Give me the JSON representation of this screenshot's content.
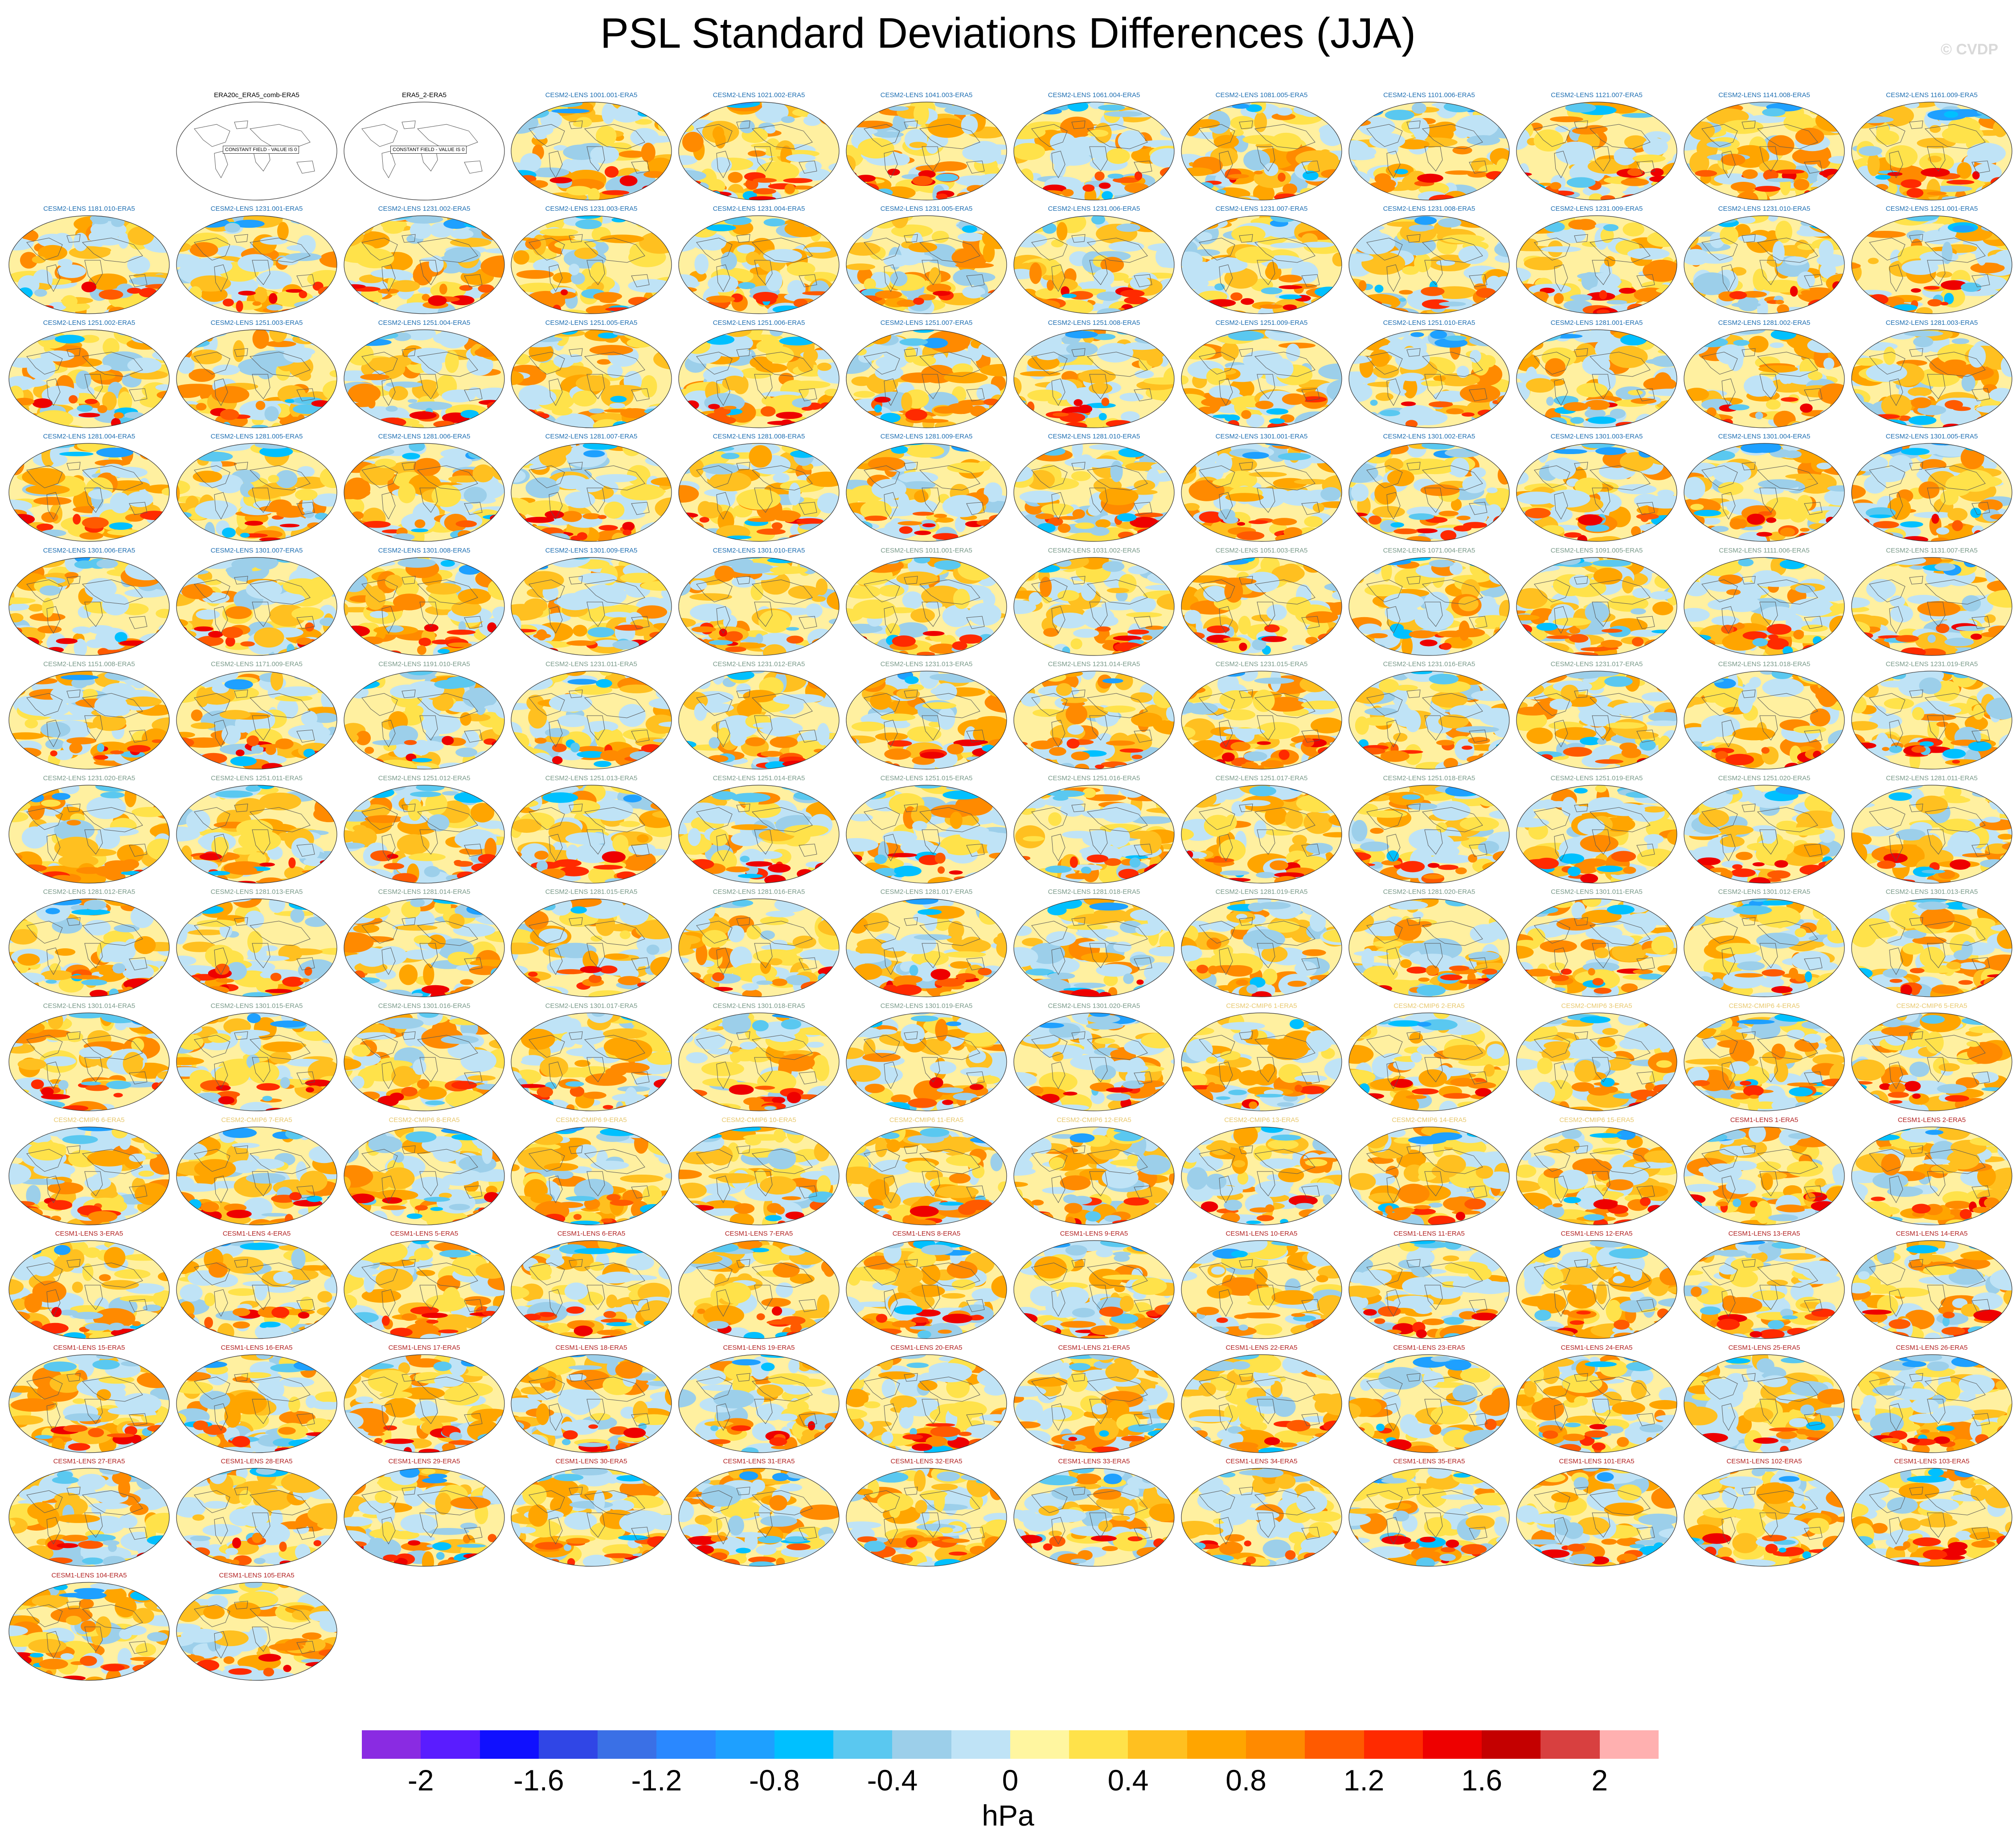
{
  "title": "PSL Standard Deviations Differences (JJA)",
  "credit": "© CVDP",
  "panels": [
    {
      "label": "ERA20c_ERA5_comb-ERA5",
      "group": "obs",
      "placeholder": "CONSTANT FIELD - VALUE IS 0"
    },
    {
      "label": "ERA5_2-ERA5",
      "group": "obs",
      "placeholder": "CONSTANT FIELD - VALUE IS 0"
    },
    {
      "label": "CESM2-LENS 1001.001-ERA5",
      "group": "cesm2_a"
    },
    {
      "label": "CESM2-LENS 1021.002-ERA5",
      "group": "cesm2_a"
    },
    {
      "label": "CESM2-LENS 1041.003-ERA5",
      "group": "cesm2_a"
    },
    {
      "label": "CESM2-LENS 1061.004-ERA5",
      "group": "cesm2_a"
    },
    {
      "label": "CESM2-LENS 1081.005-ERA5",
      "group": "cesm2_a"
    },
    {
      "label": "CESM2-LENS 1101.006-ERA5",
      "group": "cesm2_a"
    },
    {
      "label": "CESM2-LENS 1121.007-ERA5",
      "group": "cesm2_a"
    },
    {
      "label": "CESM2-LENS 1141.008-ERA5",
      "group": "cesm2_a"
    },
    {
      "label": "CESM2-LENS 1161.009-ERA5",
      "group": "cesm2_a"
    },
    {
      "label": "CESM2-LENS 1181.010-ERA5",
      "group": "cesm2_a"
    },
    {
      "label": "CESM2-LENS 1231.001-ERA5",
      "group": "cesm2_a"
    },
    {
      "label": "CESM2-LENS 1231.002-ERA5",
      "group": "cesm2_a"
    },
    {
      "label": "CESM2-LENS 1231.003-ERA5",
      "group": "cesm2_a"
    },
    {
      "label": "CESM2-LENS 1231.004-ERA5",
      "group": "cesm2_a"
    },
    {
      "label": "CESM2-LENS 1231.005-ERA5",
      "group": "cesm2_a"
    },
    {
      "label": "CESM2-LENS 1231.006-ERA5",
      "group": "cesm2_a"
    },
    {
      "label": "CESM2-LENS 1231.007-ERA5",
      "group": "cesm2_a"
    },
    {
      "label": "CESM2-LENS 1231.008-ERA5",
      "group": "cesm2_a"
    },
    {
      "label": "CESM2-LENS 1231.009-ERA5",
      "group": "cesm2_a"
    },
    {
      "label": "CESM2-LENS 1231.010-ERA5",
      "group": "cesm2_a"
    },
    {
      "label": "CESM2-LENS 1251.001-ERA5",
      "group": "cesm2_a"
    },
    {
      "label": "CESM2-LENS 1251.002-ERA5",
      "group": "cesm2_a"
    },
    {
      "label": "CESM2-LENS 1251.003-ERA5",
      "group": "cesm2_a"
    },
    {
      "label": "CESM2-LENS 1251.004-ERA5",
      "group": "cesm2_a"
    },
    {
      "label": "CESM2-LENS 1251.005-ERA5",
      "group": "cesm2_a"
    },
    {
      "label": "CESM2-LENS 1251.006-ERA5",
      "group": "cesm2_a"
    },
    {
      "label": "CESM2-LENS 1251.007-ERA5",
      "group": "cesm2_a"
    },
    {
      "label": "CESM2-LENS 1251.008-ERA5",
      "group": "cesm2_a"
    },
    {
      "label": "CESM2-LENS 1251.009-ERA5",
      "group": "cesm2_a"
    },
    {
      "label": "CESM2-LENS 1251.010-ERA5",
      "group": "cesm2_a"
    },
    {
      "label": "CESM2-LENS 1281.001-ERA5",
      "group": "cesm2_a"
    },
    {
      "label": "CESM2-LENS 1281.002-ERA5",
      "group": "cesm2_a"
    },
    {
      "label": "CESM2-LENS 1281.003-ERA5",
      "group": "cesm2_a"
    },
    {
      "label": "CESM2-LENS 1281.004-ERA5",
      "group": "cesm2_a"
    },
    {
      "label": "CESM2-LENS 1281.005-ERA5",
      "group": "cesm2_a"
    },
    {
      "label": "CESM2-LENS 1281.006-ERA5",
      "group": "cesm2_a"
    },
    {
      "label": "CESM2-LENS 1281.007-ERA5",
      "group": "cesm2_a"
    },
    {
      "label": "CESM2-LENS 1281.008-ERA5",
      "group": "cesm2_a"
    },
    {
      "label": "CESM2-LENS 1281.009-ERA5",
      "group": "cesm2_a"
    },
    {
      "label": "CESM2-LENS 1281.010-ERA5",
      "group": "cesm2_a"
    },
    {
      "label": "CESM2-LENS 1301.001-ERA5",
      "group": "cesm2_a"
    },
    {
      "label": "CESM2-LENS 1301.002-ERA5",
      "group": "cesm2_a"
    },
    {
      "label": "CESM2-LENS 1301.003-ERA5",
      "group": "cesm2_a"
    },
    {
      "label": "CESM2-LENS 1301.004-ERA5",
      "group": "cesm2_a"
    },
    {
      "label": "CESM2-LENS 1301.005-ERA5",
      "group": "cesm2_a"
    },
    {
      "label": "CESM2-LENS 1301.006-ERA5",
      "group": "cesm2_a"
    },
    {
      "label": "CESM2-LENS 1301.007-ERA5",
      "group": "cesm2_a"
    },
    {
      "label": "CESM2-LENS 1301.008-ERA5",
      "group": "cesm2_a"
    },
    {
      "label": "CESM2-LENS 1301.009-ERA5",
      "group": "cesm2_a"
    },
    {
      "label": "CESM2-LENS 1301.010-ERA5",
      "group": "cesm2_a"
    },
    {
      "label": "CESM2-LENS 1011.001-ERA5",
      "group": "cesm2_b"
    },
    {
      "label": "CESM2-LENS 1031.002-ERA5",
      "group": "cesm2_b"
    },
    {
      "label": "CESM2-LENS 1051.003-ERA5",
      "group": "cesm2_b"
    },
    {
      "label": "CESM2-LENS 1071.004-ERA5",
      "group": "cesm2_b"
    },
    {
      "label": "CESM2-LENS 1091.005-ERA5",
      "group": "cesm2_b"
    },
    {
      "label": "CESM2-LENS 1111.006-ERA5",
      "group": "cesm2_b"
    },
    {
      "label": "CESM2-LENS 1131.007-ERA5",
      "group": "cesm2_b"
    },
    {
      "label": "CESM2-LENS 1151.008-ERA5",
      "group": "cesm2_b"
    },
    {
      "label": "CESM2-LENS 1171.009-ERA5",
      "group": "cesm2_b"
    },
    {
      "label": "CESM2-LENS 1191.010-ERA5",
      "group": "cesm2_b"
    },
    {
      "label": "CESM2-LENS 1231.011-ERA5",
      "group": "cesm2_b"
    },
    {
      "label": "CESM2-LENS 1231.012-ERA5",
      "group": "cesm2_b"
    },
    {
      "label": "CESM2-LENS 1231.013-ERA5",
      "group": "cesm2_b"
    },
    {
      "label": "CESM2-LENS 1231.014-ERA5",
      "group": "cesm2_b"
    },
    {
      "label": "CESM2-LENS 1231.015-ERA5",
      "group": "cesm2_b"
    },
    {
      "label": "CESM2-LENS 1231.016-ERA5",
      "group": "cesm2_b"
    },
    {
      "label": "CESM2-LENS 1231.017-ERA5",
      "group": "cesm2_b"
    },
    {
      "label": "CESM2-LENS 1231.018-ERA5",
      "group": "cesm2_b"
    },
    {
      "label": "CESM2-LENS 1231.019-ERA5",
      "group": "cesm2_b"
    },
    {
      "label": "CESM2-LENS 1231.020-ERA5",
      "group": "cesm2_b"
    },
    {
      "label": "CESM2-LENS 1251.011-ERA5",
      "group": "cesm2_b"
    },
    {
      "label": "CESM2-LENS 1251.012-ERA5",
      "group": "cesm2_b"
    },
    {
      "label": "CESM2-LENS 1251.013-ERA5",
      "group": "cesm2_b"
    },
    {
      "label": "CESM2-LENS 1251.014-ERA5",
      "group": "cesm2_b"
    },
    {
      "label": "CESM2-LENS 1251.015-ERA5",
      "group": "cesm2_b"
    },
    {
      "label": "CESM2-LENS 1251.016-ERA5",
      "group": "cesm2_b"
    },
    {
      "label": "CESM2-LENS 1251.017-ERA5",
      "group": "cesm2_b"
    },
    {
      "label": "CESM2-LENS 1251.018-ERA5",
      "group": "cesm2_b"
    },
    {
      "label": "CESM2-LENS 1251.019-ERA5",
      "group": "cesm2_b"
    },
    {
      "label": "CESM2-LENS 1251.020-ERA5",
      "group": "cesm2_b"
    },
    {
      "label": "CESM2-LENS 1281.011-ERA5",
      "group": "cesm2_b"
    },
    {
      "label": "CESM2-LENS 1281.012-ERA5",
      "group": "cesm2_b"
    },
    {
      "label": "CESM2-LENS 1281.013-ERA5",
      "group": "cesm2_b"
    },
    {
      "label": "CESM2-LENS 1281.014-ERA5",
      "group": "cesm2_b"
    },
    {
      "label": "CESM2-LENS 1281.015-ERA5",
      "group": "cesm2_b"
    },
    {
      "label": "CESM2-LENS 1281.016-ERA5",
      "group": "cesm2_b"
    },
    {
      "label": "CESM2-LENS 1281.017-ERA5",
      "group": "cesm2_b"
    },
    {
      "label": "CESM2-LENS 1281.018-ERA5",
      "group": "cesm2_b"
    },
    {
      "label": "CESM2-LENS 1281.019-ERA5",
      "group": "cesm2_b"
    },
    {
      "label": "CESM2-LENS 1281.020-ERA5",
      "group": "cesm2_b"
    },
    {
      "label": "CESM2-LENS 1301.011-ERA5",
      "group": "cesm2_b"
    },
    {
      "label": "CESM2-LENS 1301.012-ERA5",
      "group": "cesm2_b"
    },
    {
      "label": "CESM2-LENS 1301.013-ERA5",
      "group": "cesm2_b"
    },
    {
      "label": "CESM2-LENS 1301.014-ERA5",
      "group": "cesm2_b"
    },
    {
      "label": "CESM2-LENS 1301.015-ERA5",
      "group": "cesm2_b"
    },
    {
      "label": "CESM2-LENS 1301.016-ERA5",
      "group": "cesm2_b"
    },
    {
      "label": "CESM2-LENS 1301.017-ERA5",
      "group": "cesm2_b"
    },
    {
      "label": "CESM2-LENS 1301.018-ERA5",
      "group": "cesm2_b"
    },
    {
      "label": "CESM2-LENS 1301.019-ERA5",
      "group": "cesm2_b"
    },
    {
      "label": "CESM2-LENS 1301.020-ERA5",
      "group": "cesm2_b"
    },
    {
      "label": "CESM2-CMIP6 1-ERA5",
      "group": "cmip6"
    },
    {
      "label": "CESM2-CMIP6 2-ERA5",
      "group": "cmip6"
    },
    {
      "label": "CESM2-CMIP6 3-ERA5",
      "group": "cmip6"
    },
    {
      "label": "CESM2-CMIP6 4-ERA5",
      "group": "cmip6"
    },
    {
      "label": "CESM2-CMIP6 5-ERA5",
      "group": "cmip6"
    },
    {
      "label": "CESM2-CMIP6 6-ERA5",
      "group": "cmip6"
    },
    {
      "label": "CESM2-CMIP6 7-ERA5",
      "group": "cmip6"
    },
    {
      "label": "CESM2-CMIP6 8-ERA5",
      "group": "cmip6"
    },
    {
      "label": "CESM2-CMIP6 9-ERA5",
      "group": "cmip6"
    },
    {
      "label": "CESM2-CMIP6 10-ERA5",
      "group": "cmip6"
    },
    {
      "label": "CESM2-CMIP6 11-ERA5",
      "group": "cmip6"
    },
    {
      "label": "CESM2-CMIP6 12-ERA5",
      "group": "cmip6"
    },
    {
      "label": "CESM2-CMIP6 13-ERA5",
      "group": "cmip6"
    },
    {
      "label": "CESM2-CMIP6 14-ERA5",
      "group": "cmip6"
    },
    {
      "label": "CESM2-CMIP6 15-ERA5",
      "group": "cmip6"
    },
    {
      "label": "CESM1-LENS 1-ERA5",
      "group": "cesm1"
    },
    {
      "label": "CESM1-LENS 2-ERA5",
      "group": "cesm1"
    },
    {
      "label": "CESM1-LENS 3-ERA5",
      "group": "cesm1"
    },
    {
      "label": "CESM1-LENS 4-ERA5",
      "group": "cesm1"
    },
    {
      "label": "CESM1-LENS 5-ERA5",
      "group": "cesm1"
    },
    {
      "label": "CESM1-LENS 6-ERA5",
      "group": "cesm1"
    },
    {
      "label": "CESM1-LENS 7-ERA5",
      "group": "cesm1"
    },
    {
      "label": "CESM1-LENS 8-ERA5",
      "group": "cesm1"
    },
    {
      "label": "CESM1-LENS 9-ERA5",
      "group": "cesm1"
    },
    {
      "label": "CESM1-LENS 10-ERA5",
      "group": "cesm1"
    },
    {
      "label": "CESM1-LENS 11-ERA5",
      "group": "cesm1"
    },
    {
      "label": "CESM1-LENS 12-ERA5",
      "group": "cesm1"
    },
    {
      "label": "CESM1-LENS 13-ERA5",
      "group": "cesm1"
    },
    {
      "label": "CESM1-LENS 14-ERA5",
      "group": "cesm1"
    },
    {
      "label": "CESM1-LENS 15-ERA5",
      "group": "cesm1"
    },
    {
      "label": "CESM1-LENS 16-ERA5",
      "group": "cesm1"
    },
    {
      "label": "CESM1-LENS 17-ERA5",
      "group": "cesm1"
    },
    {
      "label": "CESM1-LENS 18-ERA5",
      "group": "cesm1"
    },
    {
      "label": "CESM1-LENS 19-ERA5",
      "group": "cesm1"
    },
    {
      "label": "CESM1-LENS 20-ERA5",
      "group": "cesm1"
    },
    {
      "label": "CESM1-LENS 21-ERA5",
      "group": "cesm1"
    },
    {
      "label": "CESM1-LENS 22-ERA5",
      "group": "cesm1"
    },
    {
      "label": "CESM1-LENS 23-ERA5",
      "group": "cesm1"
    },
    {
      "label": "CESM1-LENS 24-ERA5",
      "group": "cesm1"
    },
    {
      "label": "CESM1-LENS 25-ERA5",
      "group": "cesm1"
    },
    {
      "label": "CESM1-LENS 26-ERA5",
      "group": "cesm1"
    },
    {
      "label": "CESM1-LENS 27-ERA5",
      "group": "cesm1"
    },
    {
      "label": "CESM1-LENS 28-ERA5",
      "group": "cesm1"
    },
    {
      "label": "CESM1-LENS 29-ERA5",
      "group": "cesm1"
    },
    {
      "label": "CESM1-LENS 30-ERA5",
      "group": "cesm1"
    },
    {
      "label": "CESM1-LENS 31-ERA5",
      "group": "cesm1"
    },
    {
      "label": "CESM1-LENS 32-ERA5",
      "group": "cesm1"
    },
    {
      "label": "CESM1-LENS 33-ERA5",
      "group": "cesm1"
    },
    {
      "label": "CESM1-LENS 34-ERA5",
      "group": "cesm1"
    },
    {
      "label": "CESM1-LENS 35-ERA5",
      "group": "cesm1"
    },
    {
      "label": "CESM1-LENS 101-ERA5",
      "group": "cesm1"
    },
    {
      "label": "CESM1-LENS 102-ERA5",
      "group": "cesm1"
    },
    {
      "label": "CESM1-LENS 103-ERA5",
      "group": "cesm1"
    },
    {
      "label": "CESM1-LENS 104-ERA5",
      "group": "cesm1"
    },
    {
      "label": "CESM1-LENS 105-ERA5",
      "group": "cesm1"
    }
  ],
  "group_colors": {
    "obs": "#000000",
    "cesm2_a": "#1f6fb2",
    "cesm2_b": "#7a9a8a",
    "cmip6": "#e8c86e",
    "cesm1": "#b22222"
  },
  "colorbar": {
    "unit": "hPa",
    "colors": [
      "#8a2be2",
      "#5a1cff",
      "#1010ff",
      "#3046e6",
      "#3a70e6",
      "#2a88ff",
      "#1ea0ff",
      "#00c0ff",
      "#5ac8f0",
      "#9ccfea",
      "#bfe3f6",
      "#fff6a0",
      "#ffe24a",
      "#ffc020",
      "#ffa500",
      "#ff8a00",
      "#ff5a00",
      "#ff2a00",
      "#ee0000",
      "#c40000",
      "#d84040",
      "#ffb0b0"
    ],
    "tick_labels": [
      "-2",
      "-1.6",
      "-1.2",
      "-0.8",
      "-0.4",
      "0",
      "0.4",
      "0.8",
      "1.2",
      "1.6",
      "2"
    ]
  }
}
